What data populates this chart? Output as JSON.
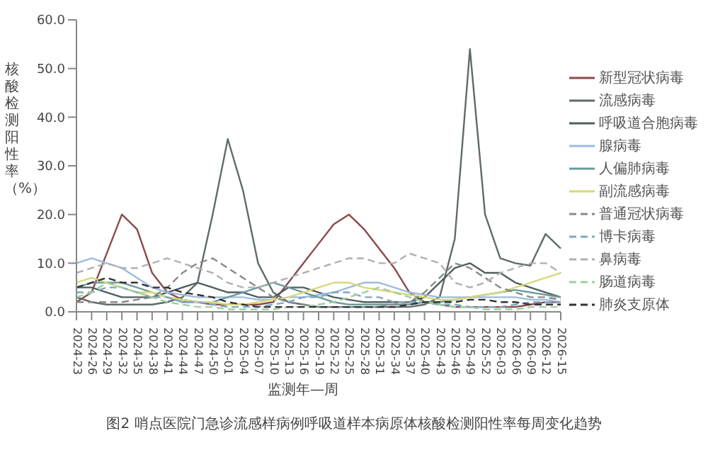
{
  "chart_data": {
    "type": "line",
    "xlabel": "监测年—周",
    "ylabel": "核酸检测阳性率（%）",
    "annotations": [
      "图2 哨点医院门急诊流感样病例呼吸道样本病原体核酸检测阳性率每周变化趋势"
    ],
    "categories": [
      "2024-23",
      "2024-26",
      "2024-29",
      "2024-32",
      "2024-35",
      "2024-38",
      "2024-41",
      "2024-44",
      "2024-47",
      "2024-50",
      "2025-01",
      "2025-04",
      "2025-07",
      "2025-10",
      "2025-13",
      "2025-16",
      "2025-19",
      "2025-22",
      "2025-25",
      "2025-28",
      "2025-31",
      "2025-34",
      "2025-37",
      "2025-40",
      "2025-43",
      "2025-46",
      "2025-49",
      "2025-52",
      "2026-03",
      "2026-06",
      "2026-09",
      "2026-12",
      "2026-15"
    ],
    "ylim": [
      0,
      60
    ],
    "yticks": [
      {
        "value": 0,
        "label": "0.0"
      },
      {
        "value": 10,
        "label": "10.0"
      },
      {
        "value": 20,
        "label": "20.0"
      },
      {
        "value": 30,
        "label": "30.0"
      },
      {
        "value": 40,
        "label": "40.0"
      },
      {
        "value": 50,
        "label": "50.0"
      },
      {
        "value": 60,
        "label": "60.0"
      }
    ],
    "grid": false,
    "legend": "right",
    "marker": "none",
    "series": [
      {
        "name": "新型冠状病毒",
        "color": "#8b4a4a",
        "line_style": "solid",
        "values": [
          2,
          4,
          12,
          20,
          17,
          8,
          4,
          2.5,
          2,
          1.5,
          1.5,
          1.5,
          1.5,
          2,
          6,
          10,
          14,
          18,
          20,
          17,
          13,
          9,
          4,
          2,
          1.5,
          1,
          1,
          1,
          1,
          1,
          1.5,
          2,
          2
        ]
      },
      {
        "name": "流感病毒",
        "color": "#5f6b6b",
        "line_style": "solid",
        "values": [
          3,
          2,
          1.5,
          1.5,
          1.5,
          1.5,
          2,
          3,
          6,
          20,
          35.5,
          25,
          10,
          4,
          2,
          1.5,
          1,
          1,
          1,
          1,
          1,
          1,
          1,
          1.5,
          3,
          15,
          54,
          20,
          11,
          10,
          9.5,
          16,
          13
        ]
      },
      {
        "name": "呼吸道合胞病毒",
        "color": "#4f5f5f",
        "line_style": "solid",
        "values": [
          5,
          5,
          4,
          3,
          3,
          3,
          4,
          5,
          6,
          5,
          4,
          4,
          3,
          3,
          5,
          5,
          4,
          3,
          2.5,
          2,
          2,
          2,
          2,
          3,
          6,
          9,
          10,
          8,
          8,
          6,
          5,
          4,
          3
        ]
      },
      {
        "name": "腺病毒",
        "color": "#9dbbe0",
        "line_style": "solid",
        "values": [
          10,
          11,
          10,
          9,
          7,
          5,
          4,
          3.5,
          3,
          3,
          3,
          3,
          2.5,
          2.5,
          3,
          3,
          3.5,
          4,
          5,
          6,
          6,
          5,
          4,
          3.5,
          3,
          3,
          3,
          3,
          3,
          3,
          2.5,
          2.5,
          2
        ]
      },
      {
        "name": "人偏肺病毒",
        "color": "#6b9b9b",
        "line_style": "solid",
        "values": [
          5,
          6,
          6,
          6,
          5,
          4,
          3,
          2,
          2,
          2,
          3,
          4,
          5,
          6,
          5,
          4,
          3,
          2,
          1.5,
          1.5,
          1.5,
          1.5,
          1.5,
          2,
          2,
          2.5,
          3,
          3.5,
          4,
          4.5,
          4,
          3.5,
          3
        ]
      },
      {
        "name": "副流感病毒",
        "color": "#d8d87a",
        "line_style": "solid",
        "values": [
          6,
          7,
          6,
          5,
          4,
          4,
          3,
          2.5,
          2,
          2,
          1.5,
          1.5,
          2,
          2.5,
          3,
          4,
          5,
          6,
          6,
          5,
          4.5,
          4,
          3.5,
          3,
          2.5,
          2.5,
          3,
          3.5,
          4,
          5,
          6,
          7,
          8
        ]
      },
      {
        "name": "普通冠状病毒",
        "color": "#8a8a8a",
        "line_style": "dashed",
        "values": [
          2,
          2,
          2,
          2,
          2.5,
          3,
          5,
          8,
          10,
          11,
          9,
          7,
          5,
          3,
          2,
          1.5,
          1,
          1,
          1,
          1,
          1,
          1.5,
          2,
          4,
          7,
          10,
          9,
          7,
          5,
          4,
          3,
          3,
          2.5
        ]
      },
      {
        "name": "博卡病毒",
        "color": "#7fa6c2",
        "line_style": "dashed",
        "values": [
          4,
          4,
          5,
          5,
          4,
          3,
          3,
          2,
          2,
          1.5,
          1,
          1,
          1,
          1.5,
          2,
          3,
          3,
          4,
          4,
          3,
          3,
          2,
          2,
          2,
          1.5,
          1.5,
          1,
          1,
          1,
          1.5,
          2,
          2,
          2
        ]
      },
      {
        "name": "鼻病毒",
        "color": "#b0b0b0",
        "line_style": "dashed",
        "values": [
          8,
          9,
          10,
          9,
          9,
          10,
          11,
          10,
          9,
          8,
          6,
          5,
          5,
          6,
          7,
          8,
          9,
          10,
          11,
          11,
          10,
          10,
          12,
          11,
          10,
          6,
          5,
          6,
          8,
          9,
          10,
          10,
          8
        ]
      },
      {
        "name": "肠道病毒",
        "color": "#9fcf9f",
        "line_style": "dashed",
        "values": [
          3,
          4,
          6,
          5,
          4,
          3,
          2,
          1.5,
          1,
          1,
          0.5,
          0.5,
          0.5,
          0.5,
          1,
          1,
          1.5,
          2,
          3,
          4,
          5,
          4,
          3,
          2,
          1.5,
          1,
          1,
          0.5,
          0.5,
          0.5,
          1,
          1,
          1
        ]
      },
      {
        "name": "肺炎支原体",
        "color": "#333333",
        "line_style": "dashed",
        "values": [
          5,
          6,
          7,
          6,
          6,
          5,
          5,
          4,
          3.5,
          3,
          2,
          1.5,
          1,
          1,
          1,
          1,
          1,
          1,
          1,
          1,
          1,
          1,
          1.5,
          2,
          2,
          2,
          2.5,
          2.5,
          2,
          2,
          1.5,
          1.5,
          1.5
        ]
      }
    ]
  }
}
